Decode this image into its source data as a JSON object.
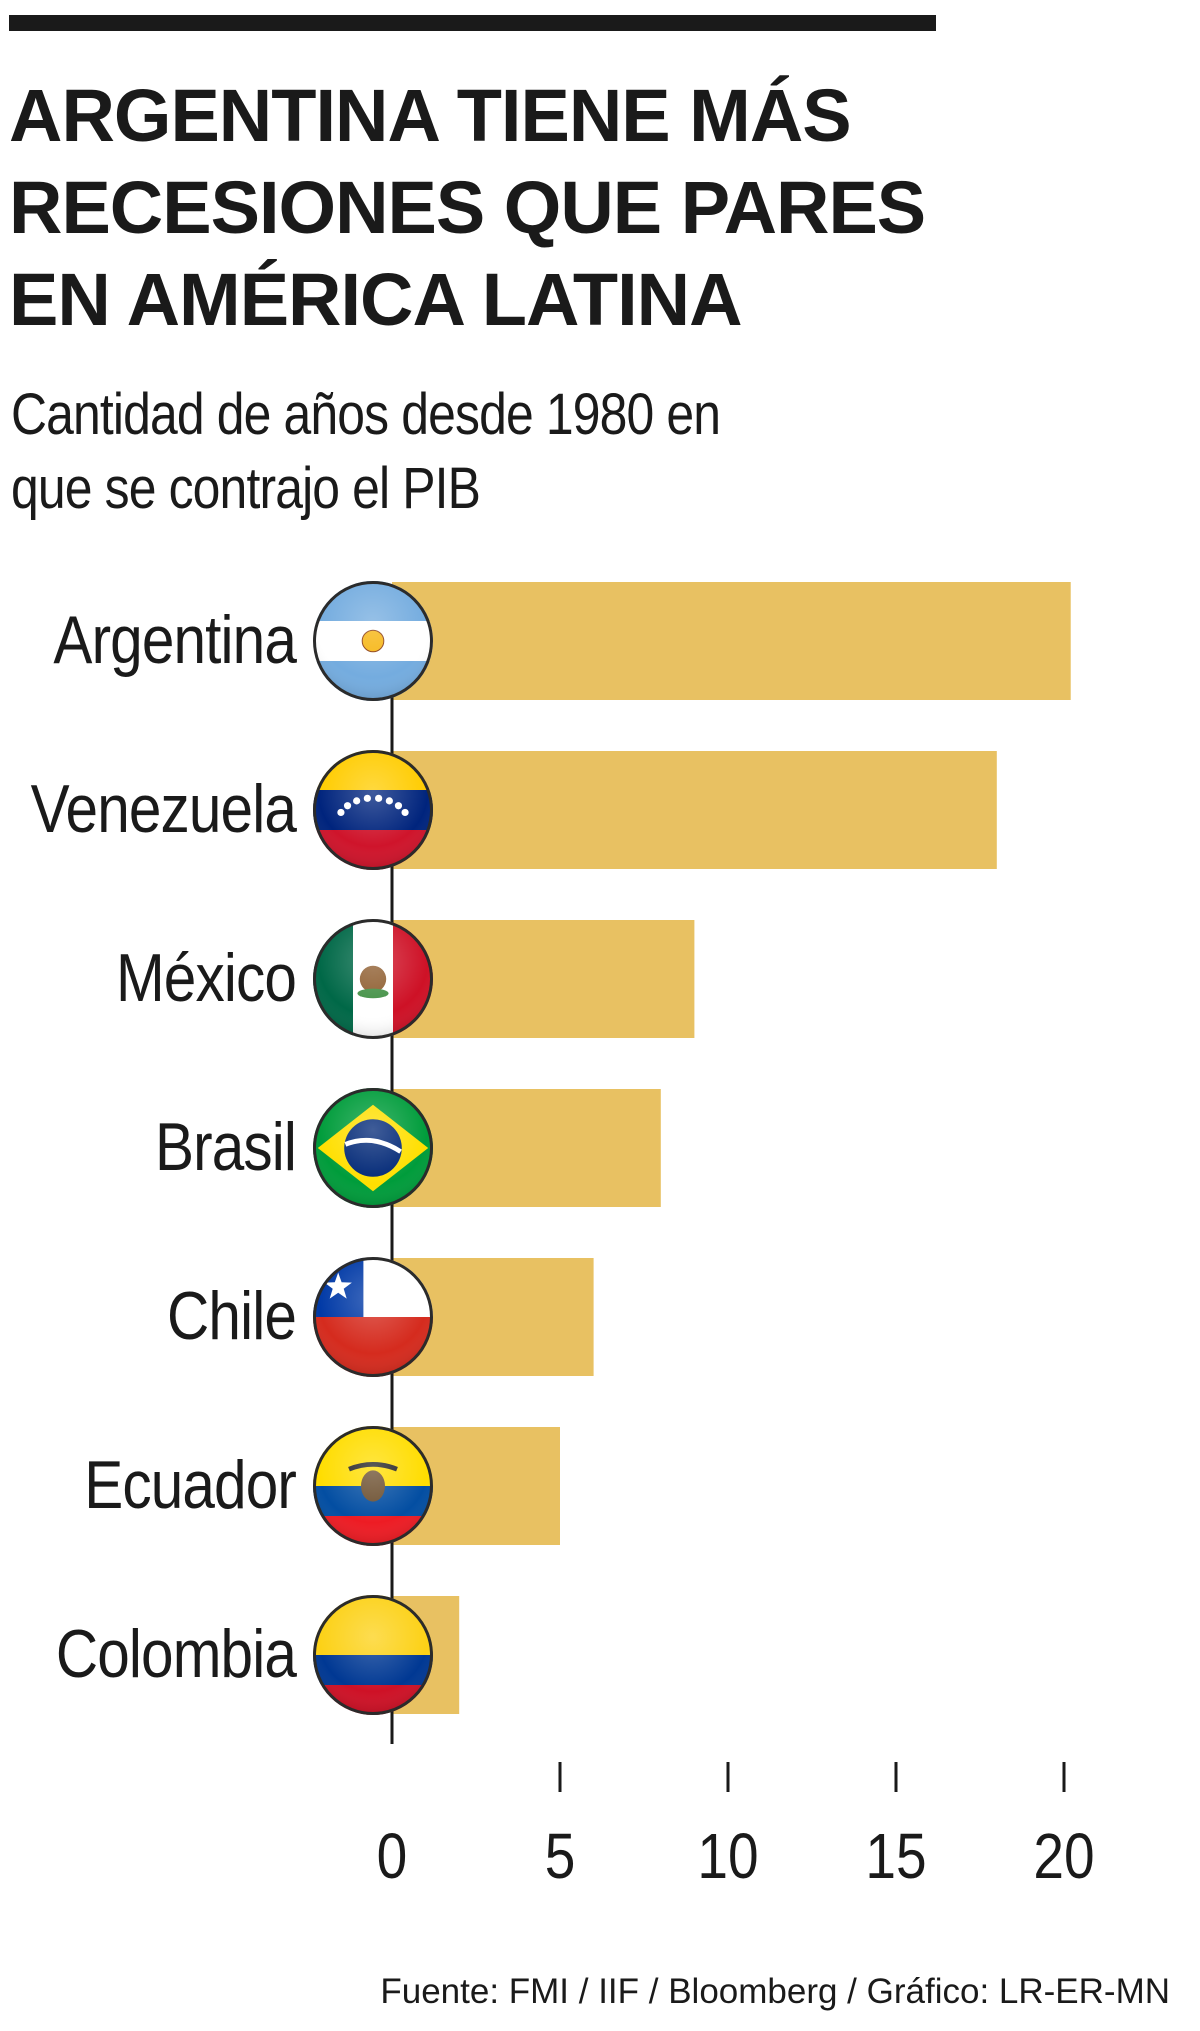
{
  "header": {
    "title_lines": [
      "ARGENTINA TIENE MÁS",
      "RECESIONES QUE PARES",
      "EN AMÉRICA LATINA"
    ],
    "subtitle_lines": [
      "Cantidad de años desde 1980 en",
      "que se contrajo el PIB"
    ]
  },
  "chart_data": {
    "type": "bar",
    "orientation": "horizontal",
    "title": "ARGENTINA TIENE MÁS RECESIONES QUE PARES EN AMÉRICA LATINA",
    "subtitle": "Cantidad de años desde 1980 en que se contrajo el PIB",
    "xlabel": "",
    "ylabel": "",
    "categories": [
      "Argentina",
      "Venezuela",
      "México",
      "Brasil",
      "Chile",
      "Ecuador",
      "Colombia"
    ],
    "values": [
      20.2,
      18,
      9,
      8,
      6,
      5,
      2
    ],
    "xlim": [
      0,
      20
    ],
    "xticks": [
      0,
      5,
      10,
      15,
      20
    ],
    "grid": false,
    "legend": "none",
    "bar_color": "#E8C162",
    "flag_icons": [
      "argentina-flag-icon",
      "venezuela-flag-icon",
      "mexico-flag-icon",
      "brazil-flag-icon",
      "chile-flag-icon",
      "ecuador-flag-icon",
      "colombia-flag-icon"
    ]
  },
  "footer": {
    "source": "Fuente: FMI / IIF / Bloomberg / Gráfico: LR-ER-MN"
  }
}
